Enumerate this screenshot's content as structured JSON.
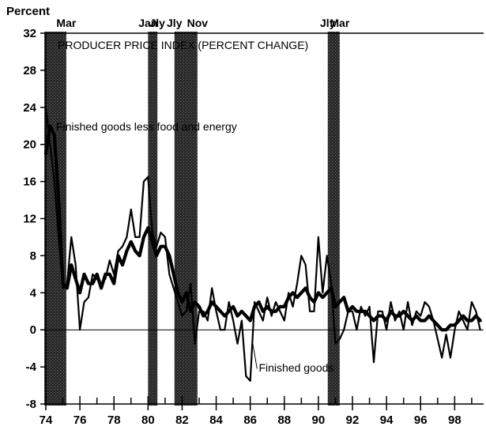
{
  "chart_data": {
    "type": "line",
    "title": "PRODUCER PRICE INDEX (PERCENT CHANGE)",
    "ylabel": "Percent",
    "xlabel": "",
    "ylim": [
      -8,
      32
    ],
    "xlim": [
      1974,
      1999.7
    ],
    "yticks": [
      32,
      28,
      24,
      20,
      16,
      12,
      8,
      4,
      0,
      -4,
      -8
    ],
    "xtick_labels": [
      "74",
      "76",
      "78",
      "80",
      "82",
      "84",
      "86",
      "88",
      "90",
      "92",
      "94",
      "96",
      "98"
    ],
    "xtick_values": [
      1974,
      1976,
      1978,
      1980,
      1982,
      1984,
      1986,
      1988,
      1990,
      1992,
      1994,
      1996,
      1998
    ],
    "grid": false,
    "shaded_periods": [
      {
        "start": 1973.9,
        "end": 1975.2
      },
      {
        "start": 1980.0,
        "end": 1980.55
      },
      {
        "start": 1981.55,
        "end": 1982.9
      },
      {
        "start": 1990.55,
        "end": 1991.25
      }
    ],
    "period_labels": [
      {
        "text": "Mar",
        "x": 1975.2
      },
      {
        "text": "Jan",
        "x": 1980.0
      },
      {
        "text": "Jly",
        "x": 1980.55
      },
      {
        "text": "Jly",
        "x": 1981.55
      },
      {
        "text": "Nov",
        "x": 1982.9
      },
      {
        "text": "Jly",
        "x": 1990.55
      },
      {
        "text": "Mar",
        "x": 1991.25
      }
    ],
    "annotations": [
      {
        "text": "Finished goods less food and energy",
        "x": 1974.6,
        "y": 21.5
      },
      {
        "text": "Finished goods",
        "x": 1986.5,
        "y": -4.5
      }
    ],
    "series": [
      {
        "name": "Finished goods",
        "color": "#000000",
        "x": [
          1974.0,
          1974.25,
          1974.5,
          1974.75,
          1975.0,
          1975.25,
          1975.5,
          1975.75,
          1976.0,
          1976.25,
          1976.5,
          1976.75,
          1977.0,
          1977.25,
          1977.5,
          1977.75,
          1978.0,
          1978.25,
          1978.5,
          1978.75,
          1979.0,
          1979.25,
          1979.5,
          1979.75,
          1980.0,
          1980.25,
          1980.5,
          1980.75,
          1981.0,
          1981.25,
          1981.5,
          1981.75,
          1982.0,
          1982.25,
          1982.5,
          1982.75,
          1983.0,
          1983.25,
          1983.5,
          1983.75,
          1984.0,
          1984.25,
          1984.5,
          1984.75,
          1985.0,
          1985.25,
          1985.5,
          1985.75,
          1986.0,
          1986.25,
          1986.5,
          1986.75,
          1987.0,
          1987.25,
          1987.5,
          1987.75,
          1988.0,
          1988.25,
          1988.5,
          1988.75,
          1989.0,
          1989.25,
          1989.5,
          1989.75,
          1990.0,
          1990.25,
          1990.5,
          1990.75,
          1991.0,
          1991.25,
          1991.5,
          1991.75,
          1992.0,
          1992.25,
          1992.5,
          1992.75,
          1993.0,
          1993.25,
          1993.5,
          1993.75,
          1994.0,
          1994.25,
          1994.5,
          1994.75,
          1995.0,
          1995.25,
          1995.5,
          1995.75,
          1996.0,
          1996.25,
          1996.5,
          1996.75,
          1997.0,
          1997.25,
          1997.5,
          1997.75,
          1998.0,
          1998.25,
          1998.5,
          1998.75,
          1999.0,
          1999.25,
          1999.5
        ],
        "y": [
          24,
          20,
          16,
          10,
          4.5,
          5,
          10,
          7,
          0,
          3,
          3.5,
          6,
          5.5,
          5,
          5.5,
          7.5,
          6,
          8.5,
          9,
          10,
          13,
          10,
          10,
          16,
          16.5,
          10.5,
          9,
          10.5,
          10,
          6,
          4.5,
          3,
          1.5,
          2,
          5,
          -1.5,
          2,
          2,
          1,
          4.5,
          2,
          0,
          0,
          3,
          1,
          -1.5,
          1,
          -5,
          -5.5,
          3,
          2,
          1,
          3.5,
          1.5,
          3,
          2,
          1,
          4,
          2.5,
          5,
          8,
          7,
          2,
          2,
          10,
          4,
          8,
          5,
          -1.5,
          -1,
          0,
          2,
          2,
          0,
          2.5,
          1.5,
          2.5,
          -3.5,
          2,
          2,
          0,
          3,
          1,
          2,
          0,
          3,
          0.5,
          2,
          1.5,
          3,
          2.5,
          1,
          -1,
          -3,
          -0.5,
          -3,
          0,
          2,
          1,
          0,
          3,
          2,
          0
        ]
      },
      {
        "name": "Finished goods less food and energy",
        "color": "#000000",
        "x": [
          1974.0,
          1974.25,
          1974.5,
          1974.75,
          1975.0,
          1975.25,
          1975.5,
          1975.75,
          1976.0,
          1976.25,
          1976.5,
          1976.75,
          1977.0,
          1977.25,
          1977.5,
          1977.75,
          1978.0,
          1978.25,
          1978.5,
          1978.75,
          1979.0,
          1979.25,
          1979.5,
          1979.75,
          1980.0,
          1980.25,
          1980.5,
          1980.75,
          1981.0,
          1981.25,
          1981.5,
          1981.75,
          1982.0,
          1982.25,
          1982.5,
          1982.75,
          1983.0,
          1983.25,
          1983.5,
          1983.75,
          1984.0,
          1984.25,
          1984.5,
          1984.75,
          1985.0,
          1985.25,
          1985.5,
          1985.75,
          1986.0,
          1986.25,
          1986.5,
          1986.75,
          1987.0,
          1987.25,
          1987.5,
          1987.75,
          1988.0,
          1988.25,
          1988.5,
          1988.75,
          1989.0,
          1989.25,
          1989.5,
          1989.75,
          1990.0,
          1990.25,
          1990.5,
          1990.75,
          1991.0,
          1991.25,
          1991.5,
          1991.75,
          1992.0,
          1992.25,
          1992.5,
          1992.75,
          1993.0,
          1993.25,
          1993.5,
          1993.75,
          1994.0,
          1994.25,
          1994.5,
          1994.75,
          1995.0,
          1995.25,
          1995.5,
          1995.75,
          1996.0,
          1996.25,
          1996.5,
          1996.75,
          1997.0,
          1997.25,
          1997.5,
          1997.75,
          1998.0,
          1998.25,
          1998.5,
          1998.75,
          1999.0,
          1999.25,
          1999.5
        ],
        "y": [
          19,
          22,
          21,
          14,
          5,
          4.5,
          7,
          5.5,
          4,
          6,
          5,
          5,
          6,
          4.5,
          6,
          6,
          5,
          8,
          7,
          8.5,
          9.5,
          8.5,
          8,
          10,
          11,
          9.5,
          8,
          9,
          9,
          8,
          6,
          4,
          3,
          4,
          2,
          3,
          2.5,
          1.5,
          2,
          3,
          2.5,
          2,
          1.5,
          2,
          2.5,
          1.5,
          2,
          1.5,
          1,
          2.5,
          3,
          2,
          2.5,
          2,
          2,
          2.5,
          2.5,
          3.5,
          4,
          3.5,
          4,
          4.5,
          3.5,
          3,
          4,
          3.5,
          4,
          4.5,
          2.5,
          3,
          3.5,
          2,
          2.5,
          2,
          2,
          2,
          1.5,
          1,
          1.5,
          1.5,
          1,
          2,
          1.5,
          1.5,
          2,
          1.5,
          1,
          1.5,
          1,
          1,
          1.5,
          1,
          0.5,
          0,
          0,
          0.5,
          0.5,
          1,
          1.5,
          1,
          1,
          1.5,
          1
        ]
      }
    ]
  }
}
